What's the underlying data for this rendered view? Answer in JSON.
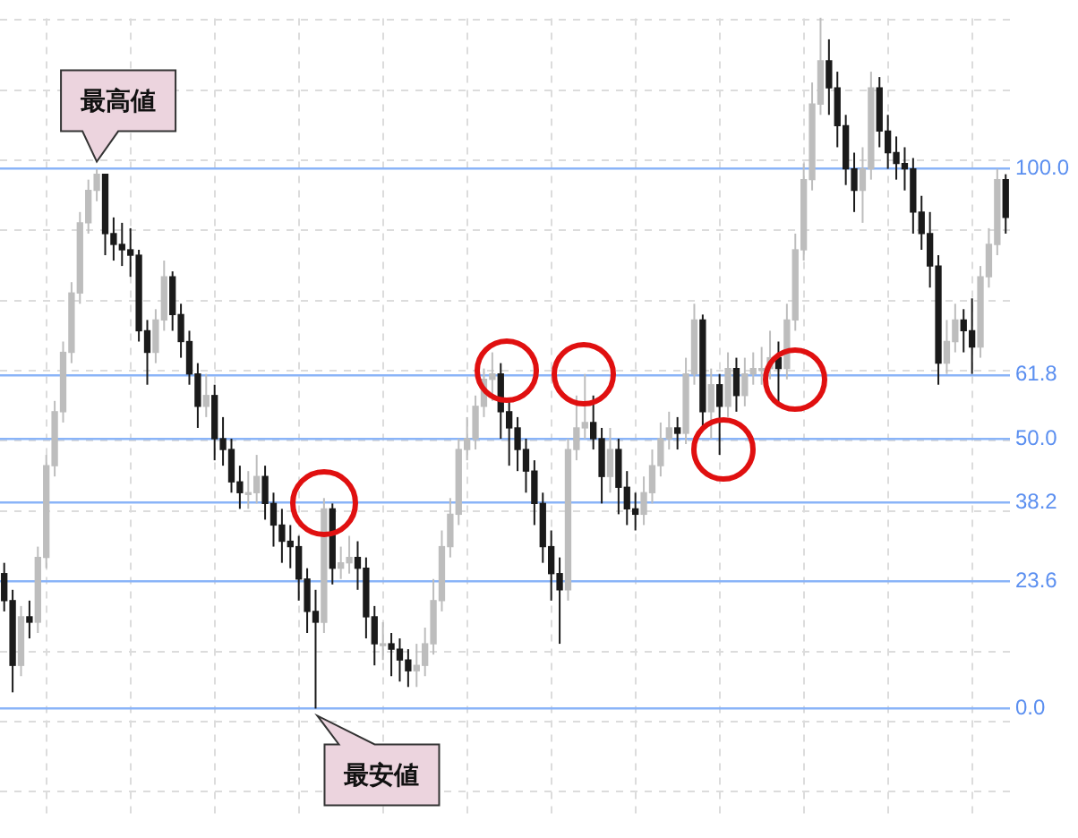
{
  "chart_data": {
    "type": "candlestick",
    "categories": [
      null,
      null,
      null,
      null,
      null,
      null,
      null,
      null,
      null,
      null,
      null,
      null,
      null,
      null,
      null,
      null,
      null,
      null,
      null,
      null,
      null,
      null,
      null,
      null,
      null,
      null,
      null,
      null,
      null,
      null,
      null,
      null,
      null,
      null,
      null,
      null,
      null,
      null,
      null,
      null,
      null,
      null,
      null,
      null,
      null,
      null,
      null,
      null,
      null,
      null,
      null,
      null,
      null,
      null,
      null,
      null,
      null,
      null,
      null,
      null,
      null,
      null,
      null,
      null,
      null,
      null,
      null,
      null,
      null,
      null,
      null,
      null,
      null,
      null,
      null,
      null,
      null,
      null,
      null,
      null,
      null,
      null,
      null,
      null,
      null,
      null,
      null,
      null,
      null,
      null,
      null,
      null,
      null,
      null,
      null,
      null,
      null,
      null,
      null,
      null,
      null,
      null,
      null,
      null,
      null,
      null,
      null,
      null,
      null,
      null,
      null,
      null,
      null,
      null,
      null,
      null,
      null,
      null,
      null,
      null
    ],
    "ohlc": [
      [
        25,
        27,
        18,
        20
      ],
      [
        20,
        22,
        3,
        8
      ],
      [
        8,
        19,
        6,
        17
      ],
      [
        17,
        20,
        13,
        16
      ],
      [
        16,
        30,
        14,
        28
      ],
      [
        28,
        47,
        26,
        45
      ],
      [
        45,
        57,
        43,
        55
      ],
      [
        55,
        68,
        53,
        66
      ],
      [
        66,
        79,
        64,
        77
      ],
      [
        77,
        92,
        75,
        90
      ],
      [
        90,
        98,
        88,
        96
      ],
      [
        96,
        100,
        94,
        99
      ],
      [
        99,
        99,
        84,
        88
      ],
      [
        88,
        91,
        83,
        86
      ],
      [
        86,
        90,
        82,
        85
      ],
      [
        85,
        89,
        80,
        84
      ],
      [
        84,
        85,
        68,
        70
      ],
      [
        70,
        72,
        60,
        66
      ],
      [
        66,
        74,
        64,
        72
      ],
      [
        72,
        83,
        70,
        80
      ],
      [
        80,
        81,
        70,
        73
      ],
      [
        73,
        75,
        65,
        68
      ],
      [
        68,
        70,
        60,
        62
      ],
      [
        62,
        64,
        52,
        56
      ],
      [
        56,
        62,
        54,
        58
      ],
      [
        58,
        60,
        46,
        50
      ],
      [
        50,
        54,
        45,
        48
      ],
      [
        48,
        50,
        40,
        42
      ],
      [
        42,
        45,
        37,
        40
      ],
      [
        40,
        44,
        37,
        40
      ],
      [
        40,
        47,
        38,
        43
      ],
      [
        43,
        45,
        35,
        38
      ],
      [
        38,
        40,
        30,
        34
      ],
      [
        34,
        37,
        27,
        31
      ],
      [
        31,
        34,
        26,
        30
      ],
      [
        30,
        32,
        20,
        24
      ],
      [
        24,
        26,
        14,
        18
      ],
      [
        18,
        22,
        0,
        16
      ],
      [
        16,
        39,
        14,
        37
      ],
      [
        37,
        38,
        23,
        26
      ],
      [
        26,
        30,
        24,
        27
      ],
      [
        27,
        32,
        25,
        28
      ],
      [
        28,
        31,
        22,
        26
      ],
      [
        26,
        28,
        13,
        17
      ],
      [
        17,
        19,
        8,
        12
      ],
      [
        12,
        16,
        9,
        12
      ],
      [
        12,
        14,
        6,
        11
      ],
      [
        11,
        13,
        5,
        9
      ],
      [
        9,
        11,
        4,
        7
      ],
      [
        7,
        12,
        4,
        8
      ],
      [
        8,
        15,
        6,
        12
      ],
      [
        12,
        24,
        10,
        20
      ],
      [
        20,
        33,
        18,
        30
      ],
      [
        30,
        39,
        28,
        36
      ],
      [
        36,
        50,
        34,
        48
      ],
      [
        48,
        54,
        46,
        50
      ],
      [
        50,
        58,
        48,
        56
      ],
      [
        56,
        63,
        54,
        61
      ],
      [
        61,
        66,
        57,
        62
      ],
      [
        62,
        64,
        50,
        55
      ],
      [
        55,
        57,
        45,
        52
      ],
      [
        52,
        54,
        44,
        48
      ],
      [
        48,
        50,
        40,
        44
      ],
      [
        44,
        46,
        34,
        38
      ],
      [
        38,
        40,
        27,
        30
      ],
      [
        30,
        33,
        20,
        25
      ],
      [
        25,
        28,
        12,
        22
      ],
      [
        22,
        50,
        20,
        48
      ],
      [
        48,
        58,
        46,
        52
      ],
      [
        52,
        62,
        50,
        53
      ],
      [
        53,
        58,
        48,
        50
      ],
      [
        50,
        52,
        38,
        43
      ],
      [
        43,
        52,
        40,
        48
      ],
      [
        48,
        50,
        36,
        41
      ],
      [
        41,
        44,
        34,
        37
      ],
      [
        37,
        40,
        33,
        36
      ],
      [
        36,
        43,
        34,
        40
      ],
      [
        40,
        48,
        38,
        45
      ],
      [
        45,
        53,
        43,
        50
      ],
      [
        50,
        55,
        48,
        52
      ],
      [
        52,
        54,
        48,
        51
      ],
      [
        51,
        65,
        49,
        62
      ],
      [
        62,
        75,
        60,
        72
      ],
      [
        72,
        73,
        52,
        55
      ],
      [
        55,
        63,
        50,
        60
      ],
      [
        60,
        62,
        47,
        56
      ],
      [
        56,
        66,
        54,
        63
      ],
      [
        63,
        65,
        55,
        58
      ],
      [
        58,
        65,
        56,
        62
      ],
      [
        62,
        66,
        60,
        63
      ],
      [
        63,
        67,
        60,
        63
      ],
      [
        63,
        70,
        61,
        65
      ],
      [
        65,
        68,
        56,
        63
      ],
      [
        63,
        75,
        61,
        72
      ],
      [
        72,
        88,
        70,
        85
      ],
      [
        85,
        101,
        83,
        98
      ],
      [
        98,
        116,
        96,
        112
      ],
      [
        112,
        128,
        110,
        120
      ],
      [
        120,
        124,
        110,
        115
      ],
      [
        115,
        118,
        104,
        108
      ],
      [
        108,
        110,
        97,
        100
      ],
      [
        100,
        103,
        92,
        96
      ],
      [
        96,
        104,
        90,
        100
      ],
      [
        100,
        118,
        98,
        115
      ],
      [
        115,
        117,
        104,
        107
      ],
      [
        107,
        110,
        100,
        103
      ],
      [
        103,
        106,
        98,
        101
      ],
      [
        101,
        104,
        96,
        100
      ],
      [
        100,
        102,
        88,
        92
      ],
      [
        92,
        95,
        85,
        88
      ],
      [
        88,
        92,
        78,
        82
      ],
      [
        82,
        84,
        60,
        64
      ],
      [
        64,
        72,
        62,
        68
      ],
      [
        68,
        75,
        66,
        72
      ],
      [
        72,
        74,
        66,
        70
      ],
      [
        70,
        76,
        62,
        67
      ],
      [
        67,
        82,
        65,
        80
      ],
      [
        80,
        89,
        78,
        86
      ],
      [
        86,
        100,
        84,
        98
      ],
      [
        98,
        99,
        88,
        91
      ]
    ],
    "colors": [
      "#1a1a1a",
      "#1a1a1a",
      "#bdbdbd",
      "#1a1a1a",
      "#bdbdbd",
      "#bdbdbd",
      "#bdbdbd",
      "#bdbdbd",
      "#bdbdbd",
      "#bdbdbd",
      "#bdbdbd",
      "#bdbdbd",
      "#1a1a1a",
      "#1a1a1a",
      "#1a1a1a",
      "#1a1a1a",
      "#1a1a1a",
      "#1a1a1a",
      "#bdbdbd",
      "#bdbdbd",
      "#1a1a1a",
      "#1a1a1a",
      "#1a1a1a",
      "#1a1a1a",
      "#bdbdbd",
      "#1a1a1a",
      "#1a1a1a",
      "#1a1a1a",
      "#1a1a1a",
      "#bdbdbd",
      "#bdbdbd",
      "#1a1a1a",
      "#1a1a1a",
      "#1a1a1a",
      "#1a1a1a",
      "#1a1a1a",
      "#1a1a1a",
      "#1a1a1a",
      "#bdbdbd",
      "#1a1a1a",
      "#bdbdbd",
      "#bdbdbd",
      "#1a1a1a",
      "#1a1a1a",
      "#1a1a1a",
      "#bdbdbd",
      "#1a1a1a",
      "#1a1a1a",
      "#1a1a1a",
      "#bdbdbd",
      "#bdbdbd",
      "#bdbdbd",
      "#bdbdbd",
      "#bdbdbd",
      "#bdbdbd",
      "#bdbdbd",
      "#bdbdbd",
      "#bdbdbd",
      "#bdbdbd",
      "#1a1a1a",
      "#1a1a1a",
      "#1a1a1a",
      "#1a1a1a",
      "#1a1a1a",
      "#1a1a1a",
      "#1a1a1a",
      "#1a1a1a",
      "#bdbdbd",
      "#bdbdbd",
      "#bdbdbd",
      "#1a1a1a",
      "#1a1a1a",
      "#bdbdbd",
      "#1a1a1a",
      "#1a1a1a",
      "#1a1a1a",
      "#bdbdbd",
      "#bdbdbd",
      "#bdbdbd",
      "#bdbdbd",
      "#1a1a1a",
      "#bdbdbd",
      "#bdbdbd",
      "#1a1a1a",
      "#bdbdbd",
      "#1a1a1a",
      "#bdbdbd",
      "#1a1a1a",
      "#bdbdbd",
      "#bdbdbd",
      "#bdbdbd",
      "#bdbdbd",
      "#1a1a1a",
      "#bdbdbd",
      "#bdbdbd",
      "#bdbdbd",
      "#bdbdbd",
      "#bdbdbd",
      "#1a1a1a",
      "#1a1a1a",
      "#1a1a1a",
      "#1a1a1a",
      "#bdbdbd",
      "#bdbdbd",
      "#1a1a1a",
      "#1a1a1a",
      "#1a1a1a",
      "#1a1a1a",
      "#1a1a1a",
      "#1a1a1a",
      "#1a1a1a",
      "#1a1a1a",
      "#bdbdbd",
      "#bdbdbd",
      "#1a1a1a",
      "#1a1a1a",
      "#bdbdbd",
      "#bdbdbd",
      "#bdbdbd",
      "#1a1a1a"
    ],
    "ylim": [
      -20.6,
      127.9
    ],
    "yticks": [
      {
        "value": -15.4,
        "label": null
      },
      {
        "value": -2.4,
        "label": null
      },
      {
        "value": 10.6,
        "label": null
      },
      {
        "value": 23.6,
        "label": null
      },
      {
        "value": 36.6,
        "label": null
      },
      {
        "value": 49.6,
        "label": null
      },
      {
        "value": 62.6,
        "label": null
      },
      {
        "value": 75.6,
        "label": null
      },
      {
        "value": 88.6,
        "label": null
      },
      {
        "value": 101.6,
        "label": null
      },
      {
        "value": 114.6,
        "label": null
      },
      {
        "value": 127.6,
        "label": null
      },
      {
        "value": 0,
        "label": "0.0"
      },
      23.6,
      38.2,
      {
        "value": 50,
        "label": "50.0"
      },
      61.8,
      {
        "value": 100,
        "label": "100.0"
      }
    ],
    "tick_labels": "y",
    "grid": true,
    "annotations": [
      "最高値",
      "最安値"
    ]
  }
}
